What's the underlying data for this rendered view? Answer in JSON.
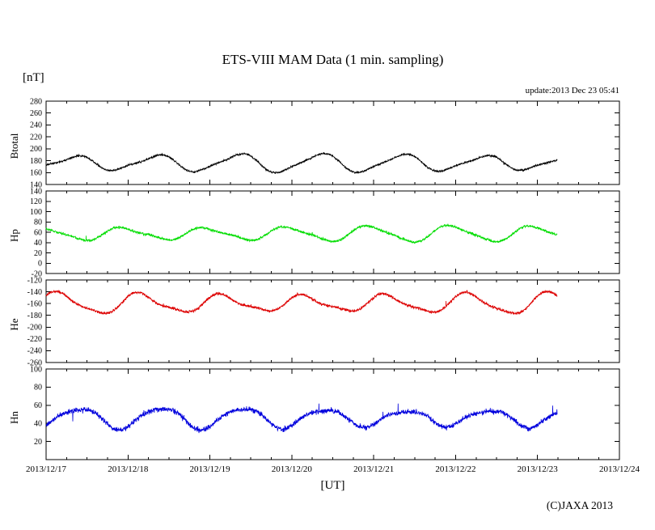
{
  "header": {
    "title": "ETS-VIII MAM Data (1 min. sampling)",
    "unit_label": "[nT]",
    "update_label": "update:2013 Dec 23 05:41"
  },
  "footer": {
    "xaxis_label": "[UT]",
    "copyright": "(C)JAXA 2013"
  },
  "chart_data": {
    "type": "line",
    "title": "ETS-VIII MAM Data (1 min. sampling)",
    "xlabel": "[UT]",
    "ylabel_unit": "[nT]",
    "grid": false,
    "legend": "none (per-panel rotated axis labels)",
    "x": {
      "xlim_days": [
        0,
        7
      ],
      "tick_labels": [
        "2013/12/17",
        "2013/12/18",
        "2013/12/19",
        "2013/12/20",
        "2013/12/21",
        "2013/12/22",
        "2013/12/23",
        "2013/12/24"
      ],
      "data_end_day": 6.24,
      "sampling": "1 min"
    },
    "panels": [
      {
        "label": "Btotal",
        "color": "#000000",
        "ylim": [
          140,
          280
        ],
        "yticks": [
          140,
          160,
          180,
          200,
          220,
          240,
          260,
          280
        ],
        "approx": {
          "mean": 176,
          "daily_min": 160,
          "daily_max": 192,
          "period_days": 1
        },
        "signal": {
          "mean": 176,
          "amp1": 13,
          "phase1": 0.1,
          "amp2": 3,
          "phase2": 0.35,
          "noise": 1.4,
          "spike": 5
        },
        "seed": 11
      },
      {
        "label": "Hp",
        "color": "#00dd00",
        "ylim": [
          -20,
          140
        ],
        "yticks": [
          -20,
          0,
          20,
          40,
          60,
          80,
          100,
          120,
          140
        ],
        "approx": {
          "mean": 57,
          "daily_min": 38,
          "daily_max": 78,
          "period_days": 1
        },
        "signal": {
          "mean": 57,
          "amp1": 13,
          "phase1": 0.7,
          "amp2": 3,
          "phase2": 0.2,
          "noise": 2.0,
          "spike": 9
        },
        "seed": 22
      },
      {
        "label": "He",
        "color": "#dd0000",
        "ylim": [
          -260,
          -120
        ],
        "yticks": [
          -260,
          -240,
          -220,
          -200,
          -180,
          -160,
          -140,
          -120
        ],
        "approx": {
          "mean": -160,
          "daily_min": -182,
          "daily_max": -140,
          "period_days": 1
        },
        "signal": {
          "mean": -160,
          "amp1": 15,
          "phase1": 0.9,
          "amp2": 4,
          "phase2": 0.45,
          "noise": 2.0,
          "spike": 9
        },
        "seed": 33
      },
      {
        "label": "Hn",
        "color": "#0000dd",
        "ylim": [
          0,
          100
        ],
        "yticks": [
          20,
          40,
          60,
          80,
          100
        ],
        "approx": {
          "mean": 46,
          "daily_min": 34,
          "daily_max": 60,
          "period_days": 1
        },
        "signal": {
          "mean": 46,
          "amp1": 10,
          "phase1": 0.15,
          "amp2": 2,
          "phase2": 0.0,
          "noise": 2.4,
          "spike": 10
        },
        "seed": 44
      }
    ]
  }
}
